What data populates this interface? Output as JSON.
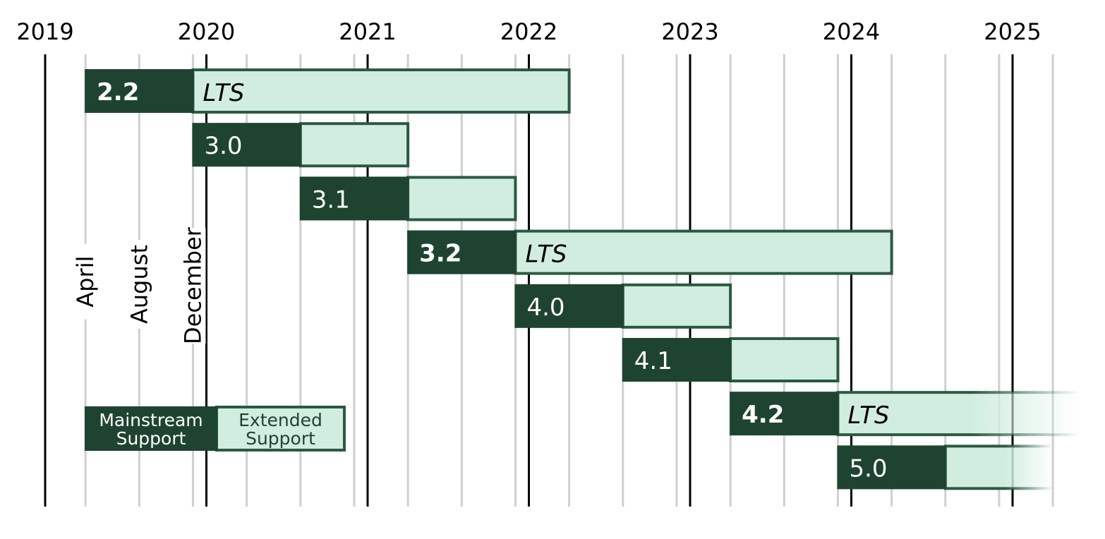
{
  "chart_data": {
    "type": "gantt",
    "title": "",
    "x_range": [
      "2019-01-01",
      "2025-06-01"
    ],
    "years": [
      "2019",
      "2020",
      "2021",
      "2022",
      "2023",
      "2024",
      "2025"
    ],
    "month_markers": [
      "April",
      "August",
      "December"
    ],
    "releases": [
      {
        "version": "2.2",
        "lts": true,
        "tag": "LTS",
        "release": "2019-04-01",
        "extended_start": "2019-12-01",
        "end": "2022-04-01"
      },
      {
        "version": "3.0",
        "lts": false,
        "tag": "",
        "release": "2019-12-01",
        "extended_start": "2020-08-01",
        "end": "2021-04-01"
      },
      {
        "version": "3.1",
        "lts": false,
        "tag": "",
        "release": "2020-08-01",
        "extended_start": "2021-04-01",
        "end": "2021-12-01"
      },
      {
        "version": "3.2",
        "lts": true,
        "tag": "LTS",
        "release": "2021-04-01",
        "extended_start": "2021-12-01",
        "end": "2024-04-01"
      },
      {
        "version": "4.0",
        "lts": false,
        "tag": "",
        "release": "2021-12-01",
        "extended_start": "2022-08-01",
        "end": "2023-04-01"
      },
      {
        "version": "4.1",
        "lts": false,
        "tag": "",
        "release": "2022-08-01",
        "extended_start": "2023-04-01",
        "end": "2023-12-01"
      },
      {
        "version": "4.2",
        "lts": true,
        "tag": "LTS",
        "release": "2023-04-01",
        "extended_start": "2023-12-01",
        "end": "2025-06-01",
        "fades_out": true
      },
      {
        "version": "5.0",
        "lts": false,
        "tag": "",
        "release": "2023-12-01",
        "extended_start": "2024-08-01",
        "end": "2025-04-01",
        "fades_out": true
      }
    ],
    "legend": {
      "mainstream": [
        "Mainstream",
        "Support"
      ],
      "extended": [
        "Extended",
        "Support"
      ]
    },
    "colors": {
      "mainstream": "#1e4431",
      "extended": "#d1ede0",
      "border": "#2b5943",
      "year_line": "#000000",
      "month_line": "#cfcfcf"
    }
  }
}
